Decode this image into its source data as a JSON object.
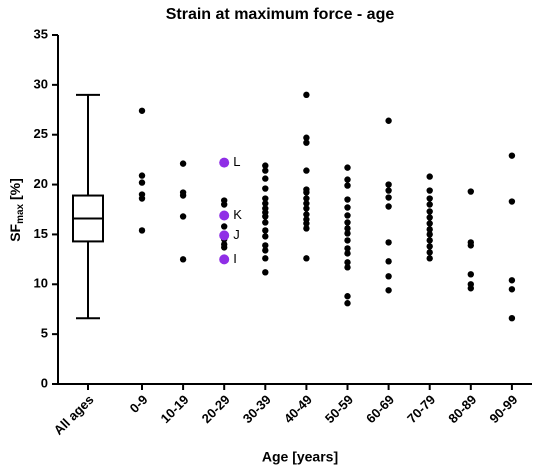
{
  "chart_data": {
    "type": "box-strip",
    "title": "Strain at maximum force - age",
    "xlabel": "Age [years]",
    "ylabel": {
      "main": "SF",
      "sub": "max",
      "tail": " [%]"
    },
    "ylim": [
      0,
      35
    ],
    "yticks": [
      0,
      5,
      10,
      15,
      20,
      25,
      30,
      35
    ],
    "point_color": "#000000",
    "highlight_color": "#8f2ee6",
    "groups": [
      {
        "category": "All ages",
        "box": {
          "whisker_low": 6.6,
          "q1": 14.3,
          "median": 16.6,
          "q3": 18.9,
          "whisker_high": 29.0
        }
      },
      {
        "category": "0-9",
        "values": [
          27.4,
          20.9,
          20.2,
          19.0,
          18.6,
          15.4
        ]
      },
      {
        "category": "10-19",
        "values": [
          22.1,
          19.2,
          18.9,
          16.8,
          12.5
        ]
      },
      {
        "category": "20-29",
        "values": [
          18.4,
          18.0,
          15.8,
          14.5,
          14.0,
          13.7
        ],
        "highlights": [
          {
            "label": "L",
            "value": 22.2
          },
          {
            "label": "K",
            "value": 16.9
          },
          {
            "label": "J",
            "value": 14.9
          },
          {
            "label": "I",
            "value": 12.5
          }
        ]
      },
      {
        "category": "30-39",
        "values": [
          21.9,
          21.4,
          20.6,
          19.6,
          18.6,
          18.1,
          17.6,
          17.2,
          16.8,
          16.2,
          15.4,
          14.8,
          13.9,
          13.4,
          12.6,
          11.2
        ]
      },
      {
        "category": "40-49",
        "values": [
          29.0,
          24.7,
          24.2,
          21.4,
          19.5,
          19.2,
          18.6,
          18.1,
          17.6,
          17.0,
          16.5,
          16.1,
          15.6,
          12.6
        ]
      },
      {
        "category": "50-59",
        "values": [
          21.7,
          20.5,
          19.9,
          18.5,
          17.7,
          16.9,
          16.2,
          15.6,
          15.1,
          14.4,
          13.6,
          13.1,
          12.2,
          11.7,
          8.8,
          8.1
        ]
      },
      {
        "category": "60-69",
        "values": [
          26.4,
          20.0,
          19.4,
          18.7,
          17.8,
          14.2,
          12.3,
          10.8,
          9.4
        ]
      },
      {
        "category": "70-79",
        "values": [
          20.8,
          19.4,
          18.6,
          18.0,
          17.3,
          16.7,
          16.1,
          15.5,
          15.0,
          14.4,
          13.8,
          13.2,
          12.6
        ]
      },
      {
        "category": "80-89",
        "values": [
          19.3,
          14.2,
          13.9,
          11.0,
          10.0,
          9.6
        ]
      },
      {
        "category": "90-99",
        "values": [
          22.9,
          18.3,
          10.4,
          9.5,
          6.6
        ]
      }
    ]
  }
}
